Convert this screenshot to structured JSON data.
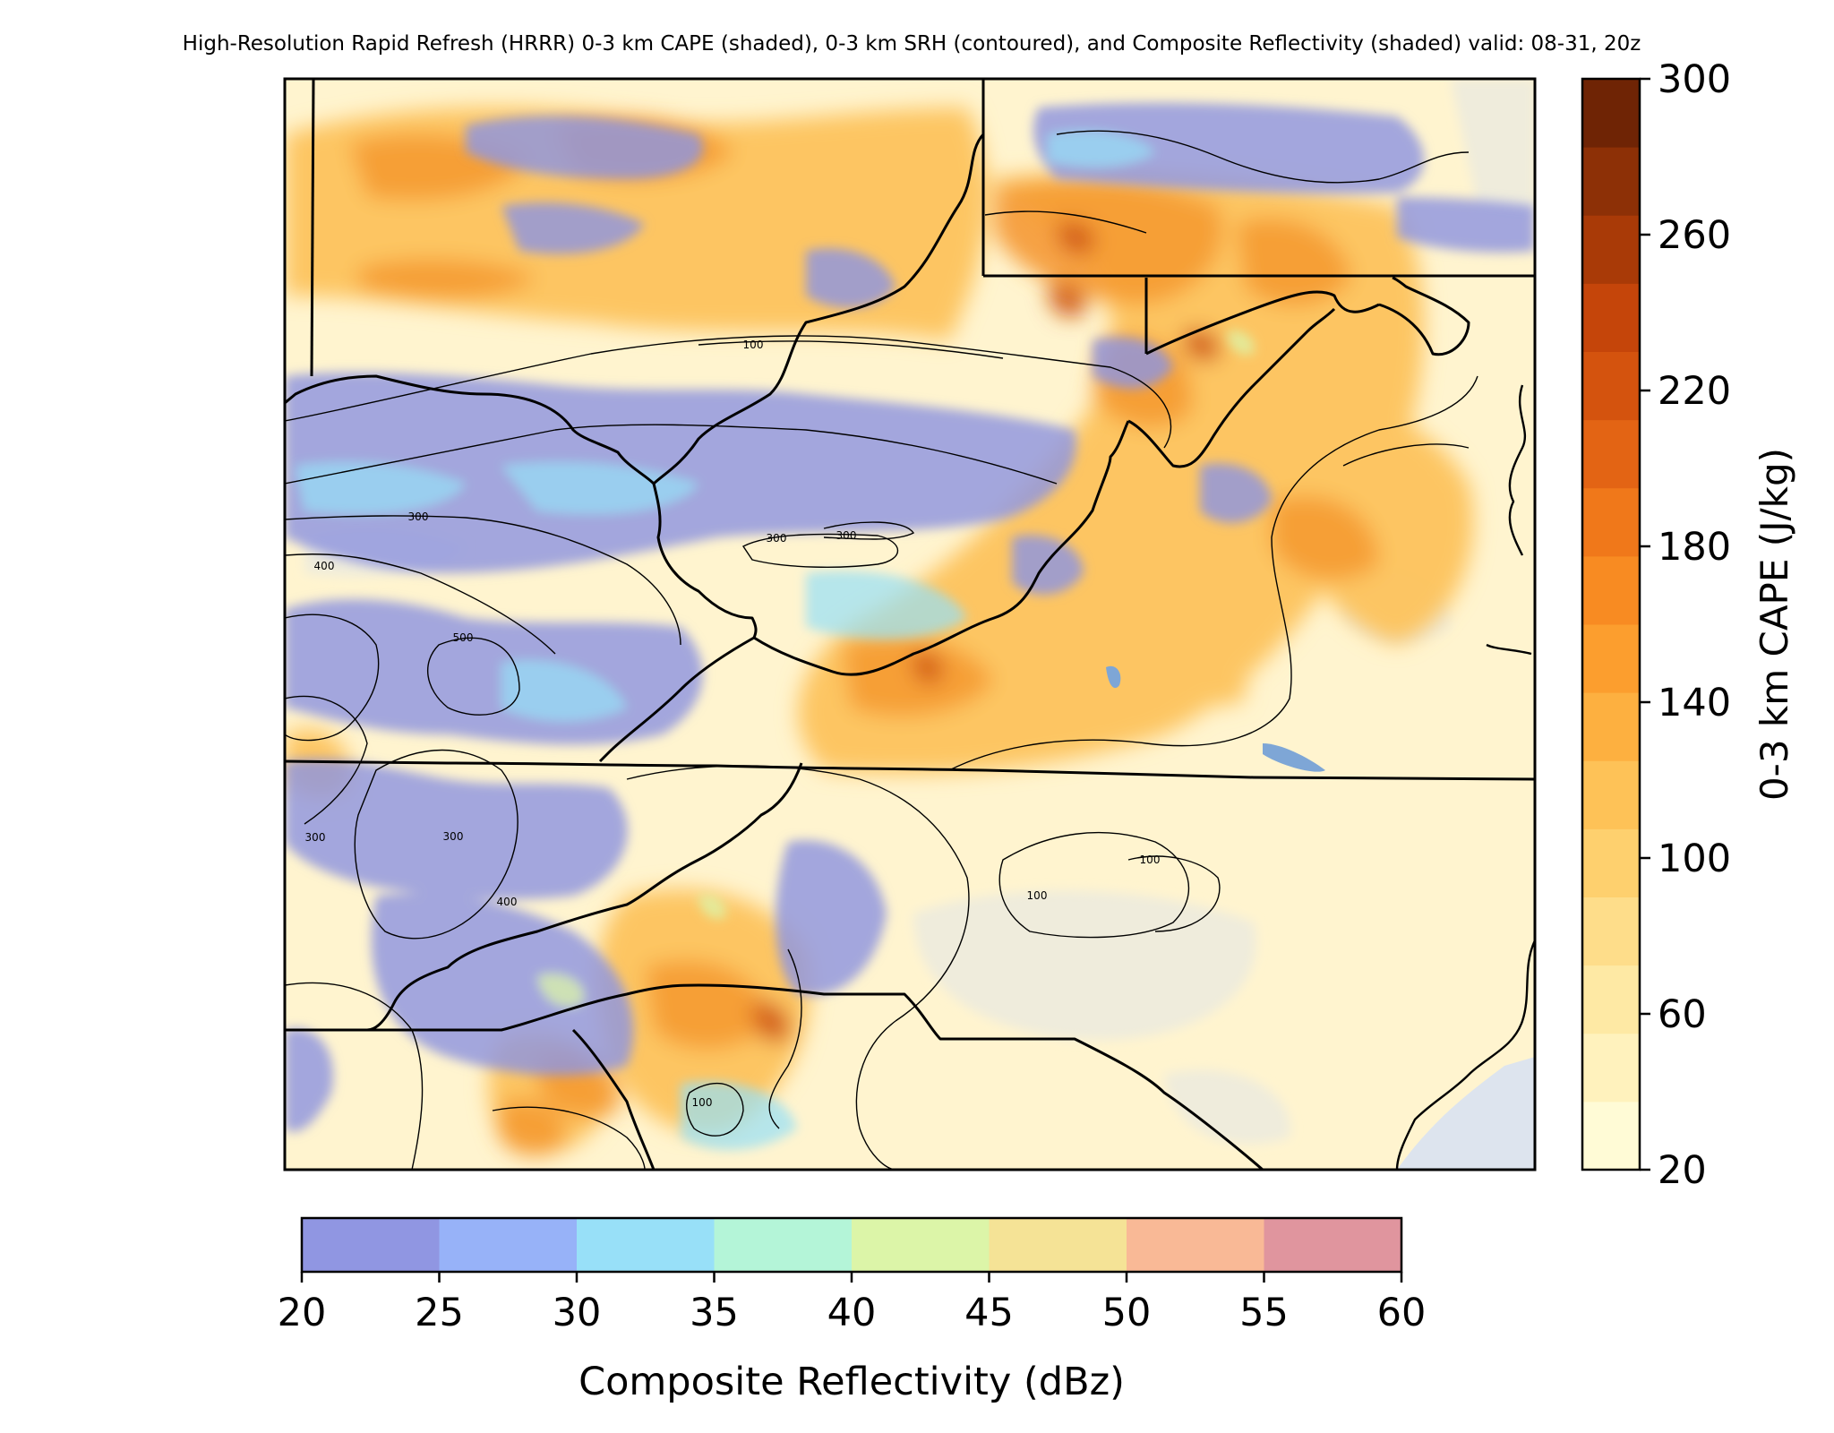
{
  "title": "High-Resolution Rapid Refresh (HRRR) 0-3 km CAPE (shaded), 0-3 km SRH (contoured), and Composite Reflectivity (shaded) valid: 08-31, 20z",
  "cape_colorbar": {
    "label": "0-3 km CAPE (J/kg)",
    "ticks": [
      "300",
      "260",
      "220",
      "180",
      "140",
      "100",
      "60",
      "20"
    ],
    "range": [
      20,
      300
    ],
    "colors": [
      "#fffbd6",
      "#fff2bd",
      "#fee9a4",
      "#fedd8a",
      "#fed06e",
      "#fec257",
      "#fdb040",
      "#fc9e2e",
      "#f88b22",
      "#f0781a",
      "#e36414",
      "#d4530e",
      "#c5450a",
      "#a93a07",
      "#8d3006",
      "#6f2405"
    ]
  },
  "refl_colorbar": {
    "label": "Composite Reflectivity (dBz)",
    "ticks": [
      "20",
      "25",
      "30",
      "35",
      "40",
      "45",
      "50",
      "55",
      "60"
    ],
    "range": [
      20,
      60
    ],
    "colors": [
      "#9096e2",
      "#97b2f8",
      "#98e0f8",
      "#b4f5d8",
      "#dcf5a8",
      "#f5e396",
      "#f9b996",
      "#e0959e"
    ]
  },
  "srh_contour_labels": [
    {
      "id": "srh-100-nw",
      "text": "100"
    },
    {
      "id": "srh-300-w",
      "text": "300"
    },
    {
      "id": "srh-300-c1",
      "text": "300"
    },
    {
      "id": "srh-300-c2",
      "text": "300"
    },
    {
      "id": "srh-400-w",
      "text": "400"
    },
    {
      "id": "srh-500-w",
      "text": "500"
    },
    {
      "id": "srh-300-sw1",
      "text": "300"
    },
    {
      "id": "srh-300-sw2",
      "text": "300"
    },
    {
      "id": "srh-400-sw",
      "text": "400"
    },
    {
      "id": "srh-100-se1",
      "text": "100"
    },
    {
      "id": "srh-100-se2",
      "text": "100"
    },
    {
      "id": "srh-100-s",
      "text": "100"
    }
  ]
}
